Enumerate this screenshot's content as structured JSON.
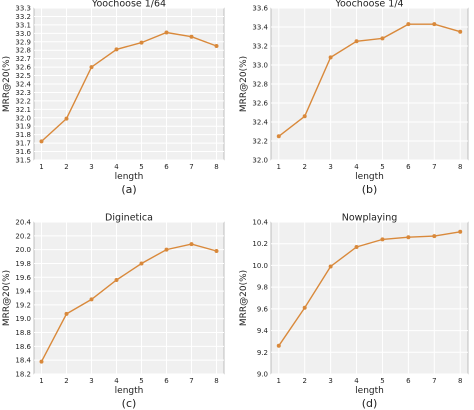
{
  "style": {
    "line_color": "#d9893b",
    "plot_bg": "#f0f0f0",
    "grid_color": "#ffffff",
    "frame_color": "#999999"
  },
  "chart_data": [
    {
      "type": "line",
      "title": "Yoochoose 1/64",
      "xlabel": "length",
      "ylabel": "MRR@20(%)",
      "caption": "(a)",
      "x": [
        1,
        2,
        3,
        4,
        5,
        6,
        7,
        8
      ],
      "xticks": [
        "1",
        "2",
        "3",
        "4",
        "5",
        "6",
        "7",
        "8"
      ],
      "series": [
        {
          "values": [
            31.72,
            31.99,
            32.6,
            32.81,
            32.89,
            33.01,
            32.96,
            32.85
          ]
        }
      ],
      "ylim": [
        31.5,
        33.3
      ],
      "yticks": [
        "31.5",
        "31.6",
        "31.7",
        "31.8",
        "31.9",
        "32.0",
        "32.1",
        "32.2",
        "32.3",
        "32.4",
        "32.5",
        "32.6",
        "32.7",
        "32.8",
        "32.9",
        "33.0",
        "33.1",
        "33.2",
        "33.3"
      ],
      "grid": true
    },
    {
      "type": "line",
      "title": "Yoochoose 1/4",
      "xlabel": "length",
      "ylabel": "MRR@20(%)",
      "caption": "(b)",
      "x": [
        1,
        2,
        3,
        4,
        5,
        6,
        7,
        8
      ],
      "xticks": [
        "1",
        "2",
        "3",
        "4",
        "5",
        "6",
        "7",
        "8"
      ],
      "series": [
        {
          "values": [
            32.25,
            32.46,
            33.08,
            33.25,
            33.28,
            33.43,
            33.43,
            33.35
          ]
        }
      ],
      "ylim": [
        32.0,
        33.6
      ],
      "yticks": [
        "32.0",
        "32.2",
        "32.4",
        "32.6",
        "32.8",
        "33.0",
        "33.2",
        "33.4",
        "33.6"
      ],
      "grid": true
    },
    {
      "type": "line",
      "title": "Diginetica",
      "xlabel": "length",
      "ylabel": "MRR@20(%)",
      "caption": "(c)",
      "x": [
        1,
        2,
        3,
        4,
        5,
        6,
        7,
        8
      ],
      "xticks": [
        "1",
        "2",
        "3",
        "4",
        "5",
        "6",
        "7",
        "8"
      ],
      "series": [
        {
          "values": [
            18.38,
            19.07,
            19.28,
            19.56,
            19.8,
            20.0,
            20.08,
            19.98
          ]
        }
      ],
      "ylim": [
        18.2,
        20.4
      ],
      "yticks": [
        "18.2",
        "18.4",
        "18.6",
        "18.8",
        "19.0",
        "19.2",
        "19.4",
        "19.6",
        "19.8",
        "20.0",
        "20.2",
        "20.4"
      ],
      "grid": true
    },
    {
      "type": "line",
      "title": "Nowplaying",
      "xlabel": "length",
      "ylabel": "MRR@20(%)",
      "caption": "(d)",
      "x": [
        1,
        2,
        3,
        4,
        5,
        6,
        7,
        8
      ],
      "xticks": [
        "1",
        "2",
        "3",
        "4",
        "5",
        "6",
        "7",
        "8"
      ],
      "series": [
        {
          "values": [
            9.26,
            9.61,
            9.99,
            10.17,
            10.24,
            10.26,
            10.27,
            10.31
          ]
        }
      ],
      "ylim": [
        9.0,
        10.4
      ],
      "yticks": [
        "9.0",
        "9.2",
        "9.4",
        "9.6",
        "9.8",
        "10.0",
        "10.2",
        "10.4"
      ],
      "grid": true
    }
  ]
}
